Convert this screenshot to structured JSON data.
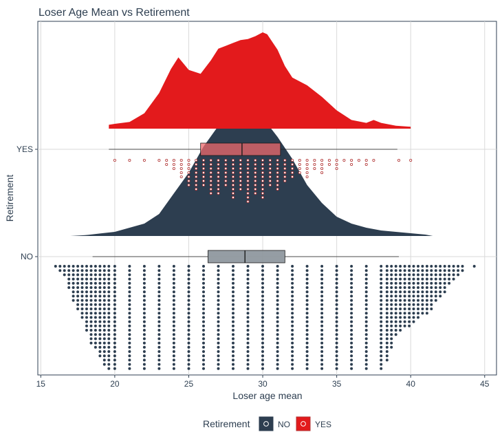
{
  "chart_data": {
    "type": "raincloud",
    "title": "Loser Age Mean vs Retirement",
    "xlabel": "Loser age mean",
    "ylabel": "Retirement",
    "xlim": [
      14.8,
      45.8
    ],
    "x_ticks": [
      15,
      20,
      25,
      30,
      35,
      40,
      45
    ],
    "categories": [
      "NO",
      "YES"
    ],
    "grid": true,
    "legend": {
      "title": "Retirement",
      "position": "bottom",
      "entries": [
        "NO",
        "YES"
      ]
    },
    "colors": {
      "NO": "#2d3e50",
      "YES": "#e31a1c",
      "YES_points": "#b03030",
      "text": "#2d3e50",
      "grid": "#d9d9d9"
    },
    "series": [
      {
        "name": "NO",
        "boxplot": {
          "whisker_low": 18.5,
          "q1": 26.3,
          "median": 28.8,
          "q3": 31.5,
          "whisker_high": 39.2
        },
        "density": {
          "x": [
            17.0,
            18.0,
            19.0,
            20.0,
            21.0,
            22.0,
            23.0,
            24.0,
            25.0,
            26.0,
            27.0,
            28.0,
            28.5,
            29.0,
            30.0,
            31.0,
            32.0,
            33.0,
            34.0,
            35.0,
            36.0,
            37.0,
            38.0,
            39.0,
            40.0,
            41.0,
            41.5
          ],
          "density": [
            0.0,
            0.006,
            0.018,
            0.03,
            0.06,
            0.09,
            0.16,
            0.31,
            0.46,
            0.65,
            0.8,
            0.93,
            1.0,
            0.97,
            0.86,
            0.72,
            0.56,
            0.37,
            0.24,
            0.14,
            0.09,
            0.06,
            0.04,
            0.03,
            0.02,
            0.01,
            0.0
          ]
        },
        "dot_columns": {
          "x": [
            16.0,
            16.3,
            16.6,
            16.9,
            17.2,
            17.5,
            17.8,
            18.1,
            18.4,
            18.7,
            19.0,
            19.3,
            19.6,
            20.0,
            21.0,
            22.0,
            23.0,
            24.0,
            25.0,
            26.0,
            27.0,
            28.0,
            29.0,
            30.0,
            31.0,
            32.0,
            33.0,
            34.0,
            35.0,
            36.0,
            37.0,
            38.0,
            38.4,
            38.7,
            39.0,
            39.3,
            39.6,
            39.9,
            40.2,
            40.5,
            40.8,
            41.1,
            41.4,
            41.7,
            42.0,
            42.3,
            42.6,
            42.9,
            43.2,
            43.5,
            44.3
          ],
          "count": [
            1,
            2,
            3,
            6,
            9,
            11,
            13,
            16,
            19,
            20,
            22,
            24,
            25,
            25,
            25,
            25,
            25,
            25,
            25,
            25,
            25,
            25,
            25,
            25,
            25,
            25,
            25,
            25,
            25,
            25,
            25,
            25,
            23,
            20,
            17,
            16,
            15,
            15,
            14,
            13,
            12,
            12,
            11,
            9,
            8,
            7,
            5,
            4,
            3,
            2,
            1
          ]
        }
      },
      {
        "name": "YES",
        "boxplot": {
          "whisker_low": 19.6,
          "q1": 25.8,
          "median": 28.6,
          "q3": 31.2,
          "whisker_high": 39.1
        },
        "density": {
          "x": [
            19.6,
            20.0,
            21.0,
            22.0,
            23.0,
            23.8,
            24.3,
            25.0,
            25.8,
            26.5,
            27.0,
            27.5,
            28.0,
            28.5,
            29.0,
            29.5,
            30.0,
            30.3,
            31.0,
            31.5,
            32.0,
            33.0,
            34.0,
            35.0,
            36.0,
            37.0,
            37.5,
            38.0,
            39.0,
            40.0
          ],
          "density": [
            0.04,
            0.05,
            0.07,
            0.16,
            0.37,
            0.62,
            0.74,
            0.61,
            0.57,
            0.71,
            0.83,
            0.86,
            0.89,
            0.92,
            0.93,
            0.96,
            1.0,
            0.98,
            0.82,
            0.65,
            0.53,
            0.45,
            0.33,
            0.19,
            0.09,
            0.06,
            0.09,
            0.06,
            0.03,
            0.02
          ]
        },
        "dot_columns": {
          "x": [
            20.0,
            21.0,
            22.0,
            23.0,
            23.5,
            24.0,
            24.5,
            25.0,
            25.5,
            26.0,
            26.5,
            27.0,
            27.5,
            28.0,
            28.5,
            29.0,
            29.5,
            30.0,
            30.5,
            31.0,
            31.5,
            32.0,
            32.5,
            33.0,
            33.5,
            34.0,
            34.5,
            35.0,
            35.5,
            36.0,
            36.5,
            37.0,
            37.5,
            39.2,
            40.0
          ],
          "count": [
            1,
            1,
            1,
            1,
            2,
            3,
            5,
            7,
            8,
            7,
            9,
            9,
            7,
            10,
            8,
            11,
            9,
            10,
            7,
            8,
            6,
            5,
            4,
            5,
            3,
            4,
            2,
            3,
            1,
            2,
            1,
            2,
            1,
            1,
            1
          ]
        }
      }
    ]
  }
}
